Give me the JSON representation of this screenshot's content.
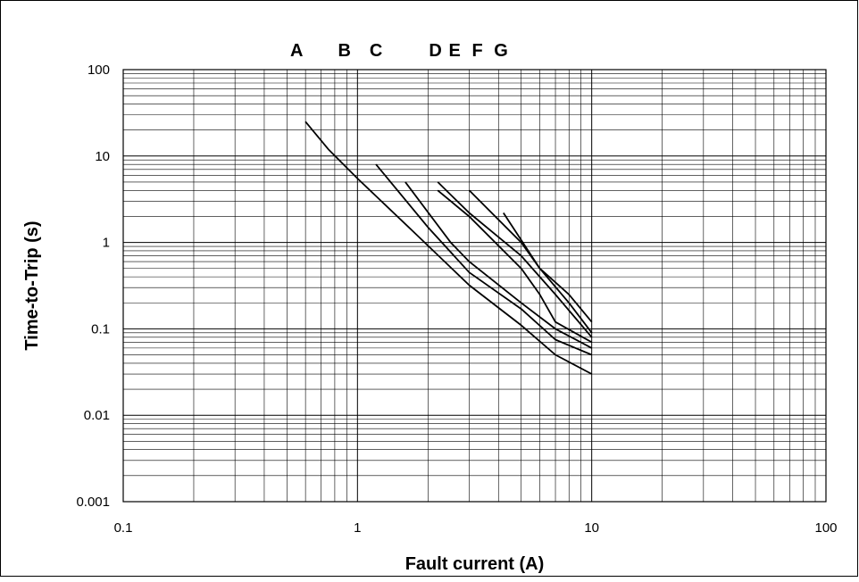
{
  "chart_data": {
    "type": "line",
    "title": "",
    "xlabel": "Fault current (A)",
    "ylabel": "Time-to-Trip (s)",
    "xscale": "log",
    "yscale": "log",
    "xlim": [
      0.1,
      100
    ],
    "ylim": [
      0.001,
      100
    ],
    "grid": true,
    "legend": "none",
    "x_tick_labels": [
      "0.1",
      "1",
      "10",
      "100"
    ],
    "y_tick_labels": [
      "0.001",
      "0.01",
      "0.1",
      "1",
      "10",
      "100"
    ],
    "series": [
      {
        "name": "A",
        "x": [
          0.6,
          0.75,
          1.0,
          1.7,
          3.0,
          5.0,
          7.0,
          10.0
        ],
        "y": [
          25,
          12,
          5.5,
          1.4,
          0.32,
          0.11,
          0.05,
          0.03
        ]
      },
      {
        "name": "B",
        "x": [
          1.2,
          2.0,
          3.0,
          5.0,
          7.0,
          10.0
        ],
        "y": [
          8.0,
          1.5,
          0.45,
          0.17,
          0.075,
          0.05
        ]
      },
      {
        "name": "C",
        "x": [
          1.6,
          2.5,
          3.0,
          5.0,
          7.0,
          10.0
        ],
        "y": [
          5.0,
          1.0,
          0.6,
          0.2,
          0.1,
          0.06
        ]
      },
      {
        "name": "D",
        "x": [
          2.2,
          3.0,
          5.0,
          6.0,
          7.0,
          10.0
        ],
        "y": [
          4.0,
          2.0,
          0.5,
          0.25,
          0.12,
          0.07
        ]
      },
      {
        "name": "E",
        "x": [
          2.2,
          3.0,
          5.0,
          7.0,
          10.0
        ],
        "y": [
          5.0,
          2.2,
          0.7,
          0.25,
          0.08
        ]
      },
      {
        "name": "F",
        "x": [
          3.0,
          5.0,
          6.0,
          8.0,
          10.0
        ],
        "y": [
          4.0,
          1.0,
          0.5,
          0.2,
          0.09
        ]
      },
      {
        "name": "G",
        "x": [
          4.2,
          6.0,
          8.0,
          10.0
        ],
        "y": [
          2.2,
          0.5,
          0.25,
          0.12
        ]
      }
    ],
    "curve_labels": [
      {
        "text": "A",
        "x": 0.55
      },
      {
        "text": "B",
        "x": 0.88
      },
      {
        "text": "C",
        "x": 1.2
      },
      {
        "text": "D",
        "x": 2.15
      },
      {
        "text": "E",
        "x": 2.6
      },
      {
        "text": "F",
        "x": 3.25
      },
      {
        "text": "G",
        "x": 4.1
      }
    ]
  }
}
